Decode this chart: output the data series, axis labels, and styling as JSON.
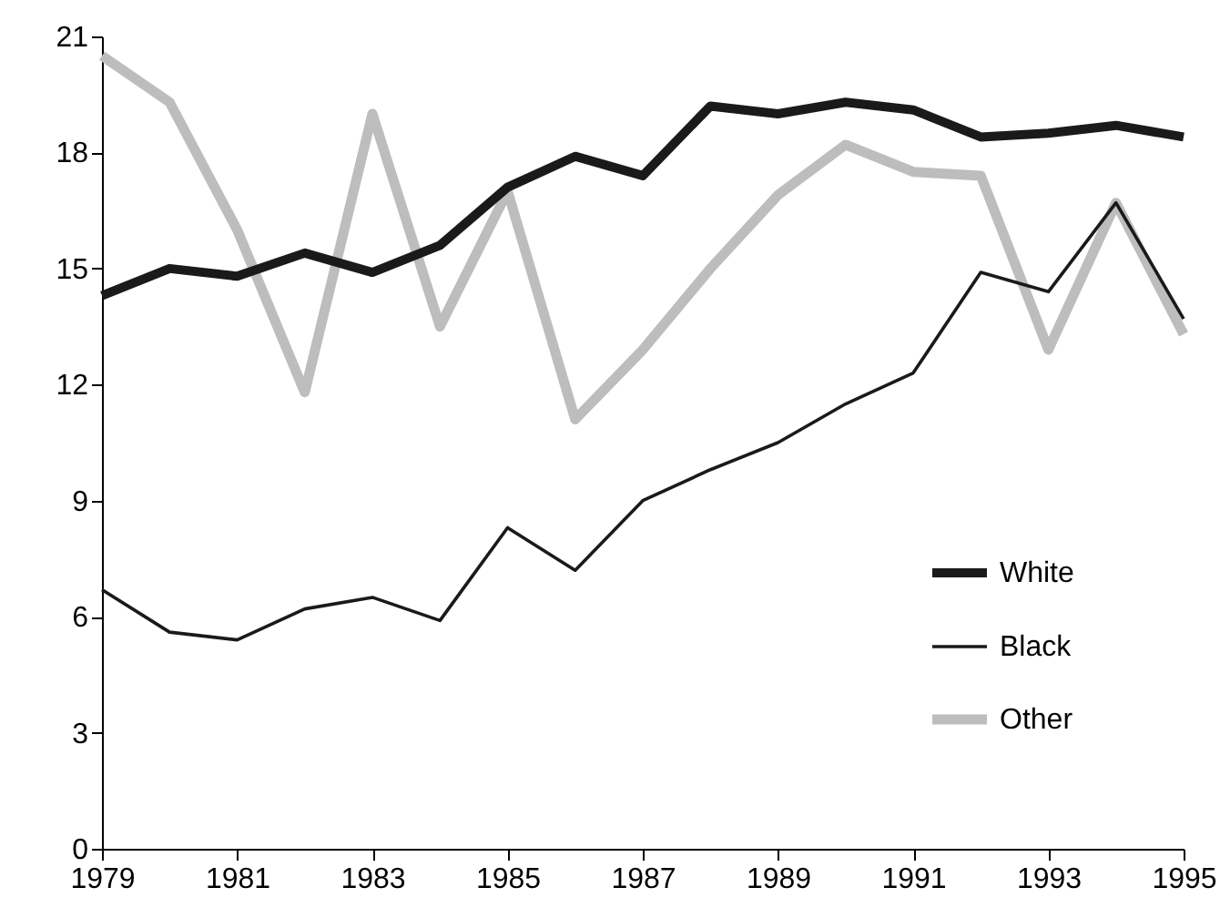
{
  "chart_data": {
    "type": "line",
    "x": [
      1979,
      1980,
      1981,
      1982,
      1983,
      1984,
      1985,
      1986,
      1987,
      1988,
      1989,
      1990,
      1991,
      1992,
      1993,
      1994,
      1995
    ],
    "series": [
      {
        "name": "White",
        "color": "#1a1a1a",
        "values": [
          14.3,
          15.0,
          14.8,
          15.4,
          14.9,
          15.6,
          17.1,
          17.9,
          17.4,
          19.2,
          19.0,
          19.3,
          19.1,
          18.4,
          18.5,
          18.7,
          18.4
        ]
      },
      {
        "name": "Black",
        "color": "#1a1a1a",
        "values": [
          6.7,
          5.6,
          5.4,
          6.2,
          6.5,
          5.9,
          8.3,
          7.2,
          9.0,
          9.8,
          10.5,
          11.5,
          12.3,
          14.9,
          14.4,
          16.7,
          13.7
        ]
      },
      {
        "name": "Other",
        "color": "#bdbdbd",
        "values": [
          20.5,
          19.3,
          16.0,
          11.8,
          19.0,
          13.5,
          17.0,
          11.1,
          12.9,
          15.0,
          16.9,
          18.2,
          17.5,
          17.4,
          12.9,
          16.7,
          13.3
        ]
      }
    ],
    "xlim": [
      1979,
      1995
    ],
    "xticks": [
      1979,
      1981,
      1983,
      1985,
      1987,
      1989,
      1991,
      1993,
      1995
    ],
    "ylim": [
      0,
      21
    ],
    "yticks": [
      0,
      3,
      6,
      9,
      12,
      15,
      18,
      21
    ],
    "grid": false,
    "legend": "bottom right",
    "marker": "none",
    "line_style": "solid"
  }
}
